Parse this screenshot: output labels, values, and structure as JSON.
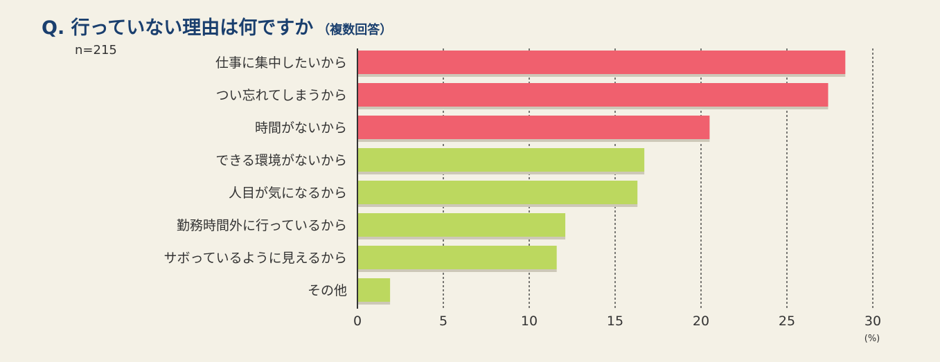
{
  "header": {
    "title": "Q. 行っていない理由は何ですか",
    "subtitle": "（複数回答）",
    "sample_size": "n=215"
  },
  "colors": {
    "background": "#f4f1e6",
    "title": "#1a3f6e",
    "bar_top3": "#f0606e",
    "bar_other": "#bcd85f",
    "bar_shadow": "#cdc8b8",
    "grid": "#333333"
  },
  "chart_data": {
    "type": "bar",
    "orientation": "horizontal",
    "title": "Q. 行っていない理由は何ですか",
    "subtitle": "（複数回答）",
    "note": "n=215",
    "unit": "(%)",
    "categories": [
      "仕事に集中したいから",
      "つい忘れてしまうから",
      "時間がないから",
      "できる環境がないから",
      "人目が気になるから",
      "勤務時間外に行っているから",
      "サボっているように見えるから",
      "その他"
    ],
    "values": [
      28.4,
      27.4,
      20.5,
      16.7,
      16.3,
      12.1,
      11.6,
      1.9
    ],
    "highlight": [
      true,
      true,
      true,
      false,
      false,
      false,
      false,
      false
    ],
    "xlim": [
      0,
      30
    ],
    "xticks": [
      0,
      5,
      10,
      15,
      20,
      25,
      30
    ],
    "grid": "vertical dashed"
  }
}
